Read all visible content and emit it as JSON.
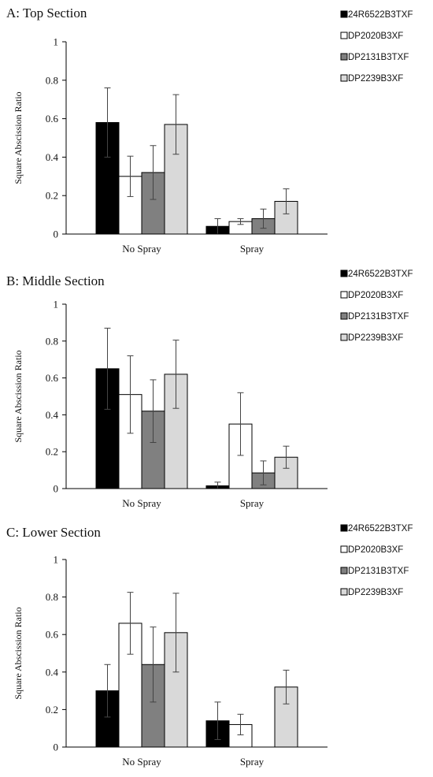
{
  "chart_data": [
    {
      "type": "bar",
      "title": "A: Top Section",
      "ylabel": "Square Abscission Ratio",
      "xlabel": "",
      "ylim": [
        0,
        1
      ],
      "yticks": [
        "0",
        "0.2",
        "0.4",
        "0.6",
        "0.8",
        "1"
      ],
      "categories": [
        "No Spray",
        "Spray"
      ],
      "series": [
        {
          "name": "24R6522B3TXF",
          "color": "#000000",
          "values": [
            0.58,
            0.04
          ],
          "errors": [
            0.18,
            0.04
          ]
        },
        {
          "name": "DP2020B3XF",
          "color": "#ffffff",
          "values": [
            0.3,
            0.065
          ],
          "errors": [
            0.105,
            0.015
          ]
        },
        {
          "name": "DP2131B3TXF",
          "color": "#808080",
          "values": [
            0.32,
            0.08
          ],
          "errors": [
            0.14,
            0.05
          ]
        },
        {
          "name": "DP2239B3XF",
          "color": "#d9d9d9",
          "values": [
            0.57,
            0.17
          ],
          "errors": [
            0.155,
            0.065
          ]
        }
      ],
      "error_bars": true,
      "grid": false,
      "legend": "top-right"
    },
    {
      "type": "bar",
      "title": "B: Middle Section",
      "ylabel": "Square Abscission Ratio",
      "xlabel": "",
      "ylim": [
        0,
        1
      ],
      "yticks": [
        "0",
        "0.2",
        "0.4",
        "0.6",
        "0.8",
        "1"
      ],
      "categories": [
        "No Spray",
        "Spray"
      ],
      "series": [
        {
          "name": "24R6522B3TXF",
          "color": "#000000",
          "values": [
            0.65,
            0.015
          ],
          "errors": [
            0.22,
            0.02
          ]
        },
        {
          "name": "DP2020B3XF",
          "color": "#ffffff",
          "values": [
            0.51,
            0.35
          ],
          "errors": [
            0.21,
            0.17
          ]
        },
        {
          "name": "DP2131B3TXF",
          "color": "#808080",
          "values": [
            0.42,
            0.085
          ],
          "errors": [
            0.17,
            0.065
          ]
        },
        {
          "name": "DP2239B3XF",
          "color": "#d9d9d9",
          "values": [
            0.62,
            0.17
          ],
          "errors": [
            0.185,
            0.06
          ]
        }
      ],
      "error_bars": true,
      "grid": false,
      "legend": "top-right"
    },
    {
      "type": "bar",
      "title": "C: Lower Section",
      "ylabel": "Square Abscission Ratio",
      "xlabel": "",
      "ylim": [
        0,
        1
      ],
      "yticks": [
        "0",
        "0.2",
        "0.4",
        "0.6",
        "0.8",
        "1"
      ],
      "categories": [
        "No Spray",
        "Spray"
      ],
      "series": [
        {
          "name": "24R6522B3TXF",
          "color": "#000000",
          "values": [
            0.3,
            0.14
          ],
          "errors": [
            0.14,
            0.1
          ]
        },
        {
          "name": "DP2020B3XF",
          "color": "#ffffff",
          "values": [
            0.66,
            0.12
          ],
          "errors": [
            0.165,
            0.055
          ]
        },
        {
          "name": "DP2131B3TXF",
          "color": "#808080",
          "values": [
            0.44,
            0.0
          ],
          "errors": [
            0.2,
            0.0
          ]
        },
        {
          "name": "DP2239B3XF",
          "color": "#d9d9d9",
          "values": [
            0.61,
            0.32
          ],
          "errors": [
            0.21,
            0.09
          ]
        }
      ],
      "error_bars": true,
      "grid": false,
      "legend": "top-right"
    }
  ]
}
